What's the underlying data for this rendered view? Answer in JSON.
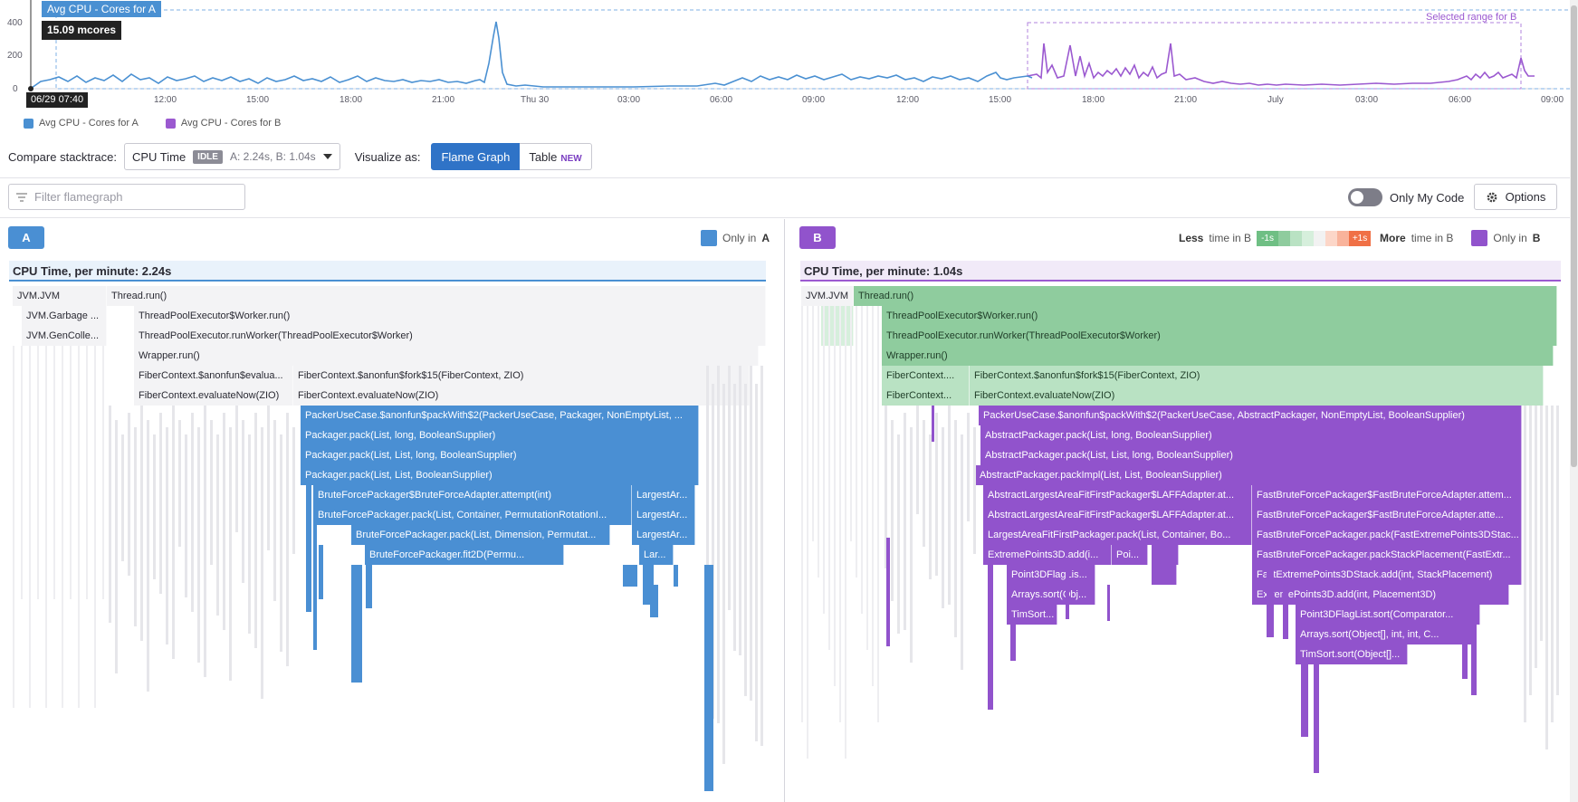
{
  "timeline": {
    "tooltip_title": "Avg CPU - Cores for A",
    "tooltip_value": "15.09 mcores",
    "cursor_date": "06/29 07:40",
    "selected_range_label": "Selected range for B",
    "y_ticks": [
      "400",
      "200",
      "0"
    ],
    "x_ticks": [
      "12:00",
      "15:00",
      "18:00",
      "21:00",
      "Thu 30",
      "03:00",
      "06:00",
      "09:00",
      "12:00",
      "15:00",
      "18:00",
      "21:00",
      "July",
      "03:00",
      "06:00",
      "09:00"
    ],
    "legend": [
      {
        "label": "Avg CPU - Cores for A",
        "color": "#4a90d2"
      },
      {
        "label": "Avg CPU - Cores for B",
        "color": "#9b59d0"
      }
    ]
  },
  "toolbar": {
    "compare_label": "Compare stacktrace:",
    "metric": "CPU Time",
    "idle_badge": "IDLE",
    "metric_values": "A: 2.24s, B: 1.04s",
    "visualize_label": "Visualize as:",
    "flame_graph": "Flame Graph",
    "table": "Table",
    "new_badge": "NEW"
  },
  "filter": {
    "placeholder": "Filter flamegraph"
  },
  "only_my_code": "Only My Code",
  "options": "Options",
  "paneA": {
    "pill": "A",
    "only_label": "Only in",
    "only_letter": "A",
    "header": "CPU Time, per minute: 2.24s"
  },
  "paneB": {
    "pill": "B",
    "less_word": "Less",
    "less_rest": "time in B",
    "scale_left": "-1s",
    "scale_right": "+1s",
    "more_word": "More",
    "more_rest": "time in B",
    "only_label": "Only in",
    "only_letter": "B",
    "header": "CPU Time, per minute: 1.04s"
  },
  "colors": {
    "a": "#4a8fd3",
    "b": "#9153cc",
    "green": "#8fcc9e"
  },
  "framesA": [
    {
      "text": "JVM.JVM"
    },
    {
      "text": "Thread.run()"
    },
    {
      "text": "JVM.Garbage ..."
    },
    {
      "text": "ThreadPoolExecutor$Worker.run()"
    },
    {
      "text": "JVM.GenColle..."
    },
    {
      "text": "ThreadPoolExecutor.runWorker(ThreadPoolExecutor$Worker)"
    },
    {
      "text": "Wrapper.run()"
    },
    {
      "text": "FiberContext.$anonfun$evalua..."
    },
    {
      "text": "FiberContext.$anonfun$fork$15(FiberContext, ZIO)"
    },
    {
      "text": "FiberContext.evaluateNow(ZIO)"
    },
    {
      "text": "FiberContext.evaluateNow(ZIO)"
    },
    {
      "text": "PackerUseCase.$anonfun$packWith$2(PackerUseCase, Packager, NonEmptyList, ..."
    },
    {
      "text": "Packager.pack(List, long, BooleanSupplier)"
    },
    {
      "text": "Packager.pack(List, List, long, BooleanSupplier)"
    },
    {
      "text": "Packager.pack(List, List, BooleanSupplier)"
    },
    {
      "text": "BruteForcePackager$BruteForceAdapter.attempt(int)"
    },
    {
      "text": "LargestAr..."
    },
    {
      "text": "BruteForcePackager.pack(List, Container, PermutationRotationI..."
    },
    {
      "text": "LargestAr..."
    },
    {
      "text": "BruteForcePackager.pack(List, Dimension, Permutat..."
    },
    {
      "text": "LargestAr..."
    },
    {
      "text": "BruteForcePackager.fit2D(Permu..."
    },
    {
      "text": "Lar..."
    }
  ],
  "framesB": [
    {
      "text": "JVM.JVM"
    },
    {
      "text": "Thread.run()"
    },
    {
      "text": "ThreadPoolExecutor$Worker.run()"
    },
    {
      "text": "ThreadPoolExecutor.runWorker(ThreadPoolExecutor$Worker)"
    },
    {
      "text": "Wrapper.run()"
    },
    {
      "text": "FiberContext...."
    },
    {
      "text": "FiberContext.$anonfun$fork$15(FiberContext, ZIO)"
    },
    {
      "text": "FiberContext..."
    },
    {
      "text": "FiberContext.evaluateNow(ZIO)"
    },
    {
      "text": "PackerUseCase.$anonfun$packWith$2(PackerUseCase, AbstractPackager, NonEmptyList, BooleanSupplier)"
    },
    {
      "text": "AbstractPackager.pack(List, long, BooleanSupplier)"
    },
    {
      "text": "AbstractPackager.pack(List, List, long, BooleanSupplier)"
    },
    {
      "text": "AbstractPackager.packImpl(List, List, BooleanSupplier)"
    },
    {
      "text": "AbstractLargestAreaFitFirstPackager$LAFFAdapter.at..."
    },
    {
      "text": "FastBruteForcePackager$FastBruteForceAdapter.attem..."
    },
    {
      "text": "AbstractLargestAreaFitFirstPackager$LAFFAdapter.at..."
    },
    {
      "text": "FastBruteForcePackager$FastBruteForceAdapter.atte..."
    },
    {
      "text": "LargestAreaFitFirstPackager.pack(List, Container, Bo..."
    },
    {
      "text": "FastBruteForcePackager.pack(FastExtremePoints3DStac..."
    },
    {
      "text": "ExtremePoints3D.add(i..."
    },
    {
      "text": "Poi..."
    },
    {
      "text": "FastBruteForcePackager.packStackPlacement(FastExtr..."
    },
    {
      "text": "Point3DFlagLis..."
    },
    {
      "text": "FastExtremePoints3DStack.add(int, StackPlacement)"
    },
    {
      "text": "Arrays.sort(Obj..."
    },
    {
      "text": "ExtremePoints3D.add(int, Placement3D)"
    },
    {
      "text": "TimSort..."
    },
    {
      "text": "Point3DFlagList.sort(Comparator..."
    },
    {
      "text": "Arrays.sort(Object[], int, int, C..."
    },
    {
      "text": "TimSort.sort(Object[]..."
    }
  ]
}
